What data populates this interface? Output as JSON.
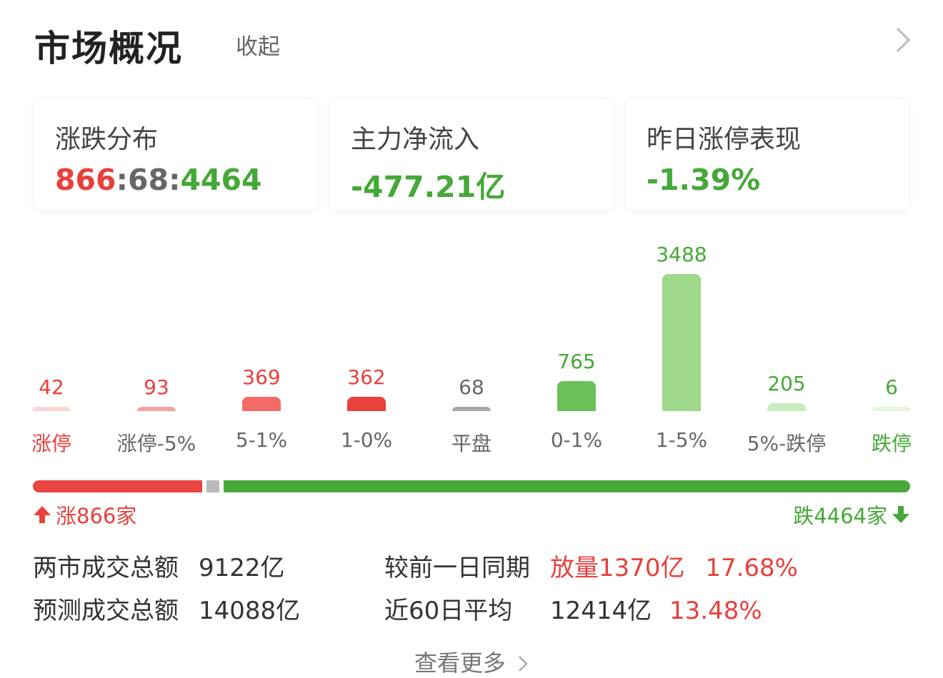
{
  "header": {
    "title": "市场概况",
    "collapse_label": "收起"
  },
  "cards": [
    {
      "label": "涨跌分布",
      "up": "866",
      "flat": "68",
      "down": "4464",
      "sep": ":"
    },
    {
      "label": "主力净流入",
      "value": "-477.21亿"
    },
    {
      "label": "昨日涨停表现",
      "value": "-1.39%"
    }
  ],
  "chart_data": {
    "type": "bar",
    "categories": [
      "涨停",
      "涨停-5%",
      "5-1%",
      "1-0%",
      "平盘",
      "0-1%",
      "1-5%",
      "5%-跌停",
      "跌停"
    ],
    "values": [
      42,
      93,
      369,
      362,
      68,
      765,
      3488,
      205,
      6
    ],
    "colors": [
      "#fbd5d4",
      "#f5a3a1",
      "#f26b67",
      "#e8403b",
      "#a8a8a8",
      "#6cc05a",
      "#9fd98c",
      "#c9ebbe",
      "#e4f6dd"
    ],
    "label_colors": [
      "#e8403b",
      "#e8403b",
      "#e8403b",
      "#e8403b",
      "#666666",
      "#45a838",
      "#45a838",
      "#45a838",
      "#45a838"
    ],
    "category_colors": [
      "#e8403b",
      "#666666",
      "#666666",
      "#666666",
      "#666666",
      "#666666",
      "#666666",
      "#666666",
      "#45a838"
    ]
  },
  "ratio_bar": {
    "up": 866,
    "flat": 68,
    "down": 4464
  },
  "summary": {
    "up_label": "涨866家",
    "down_label": "跌4464家"
  },
  "stats": {
    "row1": {
      "label": "两市成交总额",
      "value": "9122亿",
      "compare_label": "较前一日同期",
      "compare_text": "放量1370亿",
      "compare_pct": "17.68%"
    },
    "row2": {
      "label": "预测成交总额",
      "value": "14088亿",
      "avg_label": "近60日平均",
      "avg_value": "12414亿",
      "avg_pct": "13.48%"
    }
  },
  "more_label": "查看更多",
  "theme": {
    "red": "#e8403b",
    "green": "#45a838",
    "gray": "#666666"
  }
}
